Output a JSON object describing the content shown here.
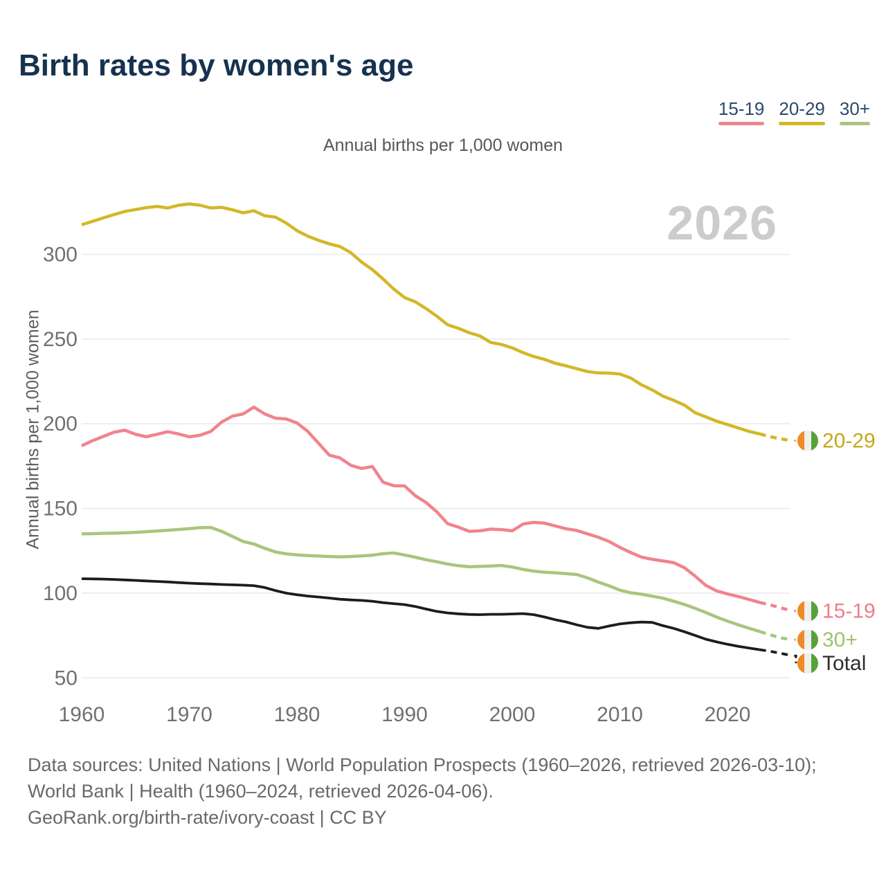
{
  "header": {
    "title": "Birth rates by women's age"
  },
  "legend": {
    "items": [
      {
        "label": "15-19",
        "color": "#F0838D"
      },
      {
        "label": "20-29",
        "color": "#D2B729"
      },
      {
        "label": "30+",
        "color": "#A9C57D"
      }
    ]
  },
  "subtitle": "Annual births per 1,000 women",
  "watermark_year": "2026",
  "footer": {
    "sources": "Data sources: United Nations | World Population Prospects (1960–2026, retrieved 2026-03-10); World Bank | Health (1960–2024, retrieved 2026-04-06).",
    "attribution": "GeoRank.org/birth-rate/ivory-coast | CC BY"
  },
  "flag_icon": {
    "name": "ivory-coast-flag",
    "stripe_colors": [
      "#F08A24",
      "#EFEFEF",
      "#58A13A"
    ]
  },
  "theme": {
    "background": "#FFFFFF",
    "title-color": "#16324F",
    "legend-text": "#2B4A69",
    "subtitle-color": "#55565A",
    "tick-color": "#6F7071",
    "grid-color": "#E9EAEB",
    "watermark-color": "#CBCCCE",
    "footer-color": "#68696B",
    "axis-title-color": "#5C5D60"
  },
  "chart_data": {
    "type": "line",
    "title": "Birth rates by women's age",
    "subtitle": "Annual births per 1,000 women",
    "ylabel": "Annual births per 1,000 women",
    "xlabel": "",
    "grid": "horizontal",
    "legend_position": "top-right",
    "x_ticks": [
      1960,
      1970,
      1980,
      1990,
      2000,
      2010,
      2020
    ],
    "y_ticks": [
      300,
      250,
      200,
      150,
      100,
      50
    ],
    "ylim": [
      40,
      340
    ],
    "xlim": [
      1960,
      2026
    ],
    "projection_from": 2023,
    "x": [
      1960,
      1961,
      1962,
      1963,
      1964,
      1965,
      1966,
      1967,
      1968,
      1969,
      1970,
      1971,
      1972,
      1973,
      1974,
      1975,
      1976,
      1977,
      1978,
      1979,
      1980,
      1981,
      1982,
      1983,
      1984,
      1985,
      1986,
      1987,
      1988,
      1989,
      1990,
      1991,
      1992,
      1993,
      1994,
      1995,
      1996,
      1997,
      1998,
      1999,
      2000,
      2001,
      2002,
      2003,
      2004,
      2005,
      2006,
      2007,
      2008,
      2009,
      2010,
      2011,
      2012,
      2013,
      2014,
      2015,
      2016,
      2017,
      2018,
      2019,
      2020,
      2021,
      2022,
      2023,
      2024,
      2025,
      2026
    ],
    "series": [
      {
        "name": "20-29",
        "color": "#D2B729",
        "label_color": "#C2A916",
        "values": [
          317.5,
          319.5,
          321.5,
          323.5,
          325.3,
          326.5,
          327.6,
          328.3,
          327.4,
          329,
          329.8,
          329,
          327.4,
          327.8,
          326.3,
          324.5,
          325.8,
          322.8,
          322,
          318.5,
          314,
          310.8,
          308.3,
          306.2,
          304.6,
          301,
          295.5,
          291,
          285.5,
          279.5,
          274.5,
          272,
          268,
          263.5,
          258.5,
          256.3,
          253.8,
          251.8,
          248,
          246.8,
          244.8,
          242,
          239.7,
          238,
          235.7,
          234.2,
          232.5,
          230.8,
          230,
          229.9,
          229.4,
          227,
          223,
          220,
          216.3,
          213.8,
          211,
          206.5,
          204,
          201.5,
          199.5,
          197.5,
          195.5,
          194,
          192.3,
          191,
          190
        ]
      },
      {
        "name": "15-19",
        "color": "#F0838D",
        "label_color": "#EE7D88",
        "values": [
          187,
          190,
          192.5,
          195,
          196.2,
          193.8,
          192.3,
          193.8,
          195.3,
          194,
          192.3,
          193.2,
          195.5,
          201,
          204.5,
          205.8,
          209.8,
          205.8,
          203.3,
          202.8,
          200.5,
          195.5,
          188.5,
          181.5,
          179.8,
          175.5,
          173.6,
          174.8,
          165.5,
          163.4,
          163.3,
          157.5,
          153.5,
          148,
          141,
          139,
          136.5,
          136.8,
          137.8,
          137.5,
          136.8,
          140.8,
          141.8,
          141.3,
          139.7,
          138,
          137,
          135,
          133,
          130.5,
          127,
          124,
          121.3,
          120,
          119,
          118,
          115,
          110,
          104.5,
          101.3,
          99.5,
          98,
          96.3,
          94.5,
          93,
          91.2,
          89.5
        ]
      },
      {
        "name": "30+",
        "color": "#A9C57D",
        "label_color": "#A2C06F",
        "values": [
          135,
          135.1,
          135.3,
          135.4,
          135.6,
          135.9,
          136.3,
          136.7,
          137.1,
          137.6,
          138.1,
          138.6,
          138.8,
          136.5,
          133.5,
          130.5,
          129,
          126.5,
          124.3,
          123.2,
          122.6,
          122.2,
          121.9,
          121.6,
          121.4,
          121.6,
          122,
          122.4,
          123.3,
          123.7,
          122.5,
          121.2,
          119.7,
          118.5,
          117.2,
          116.2,
          115.6,
          115.8,
          116,
          116.3,
          115.4,
          114,
          113,
          112.4,
          112,
          111.5,
          111,
          109,
          106.5,
          104.3,
          101.8,
          100.2,
          99.4,
          98.2,
          97,
          95.2,
          93.3,
          91,
          88.5,
          85.8,
          83.5,
          81.3,
          79.3,
          77.3,
          75.3,
          73.5,
          72.5
        ]
      },
      {
        "name": "Total",
        "color": "#1C1C1C",
        "label_color": "#2D2D2D",
        "values": [
          108.5,
          108.4,
          108.3,
          108.1,
          107.8,
          107.5,
          107.2,
          106.9,
          106.6,
          106.2,
          105.9,
          105.6,
          105.4,
          105.1,
          104.9,
          104.7,
          104.4,
          103.3,
          101.5,
          100,
          99,
          98.3,
          97.7,
          97.1,
          96.4,
          96,
          95.7,
          95.2,
          94.4,
          93.8,
          93.2,
          92.1,
          90.6,
          89.2,
          88.3,
          87.8,
          87.4,
          87.3,
          87.5,
          87.5,
          87.7,
          87.9,
          87.3,
          85.9,
          84.3,
          83,
          81.3,
          79.8,
          79.2,
          80.6,
          81.8,
          82.5,
          82.9,
          82.7,
          80.8,
          79.2,
          77.2,
          75,
          72.8,
          71.2,
          69.8,
          68.6,
          67.6,
          66.6,
          65.6,
          64.4,
          63
        ]
      }
    ]
  }
}
